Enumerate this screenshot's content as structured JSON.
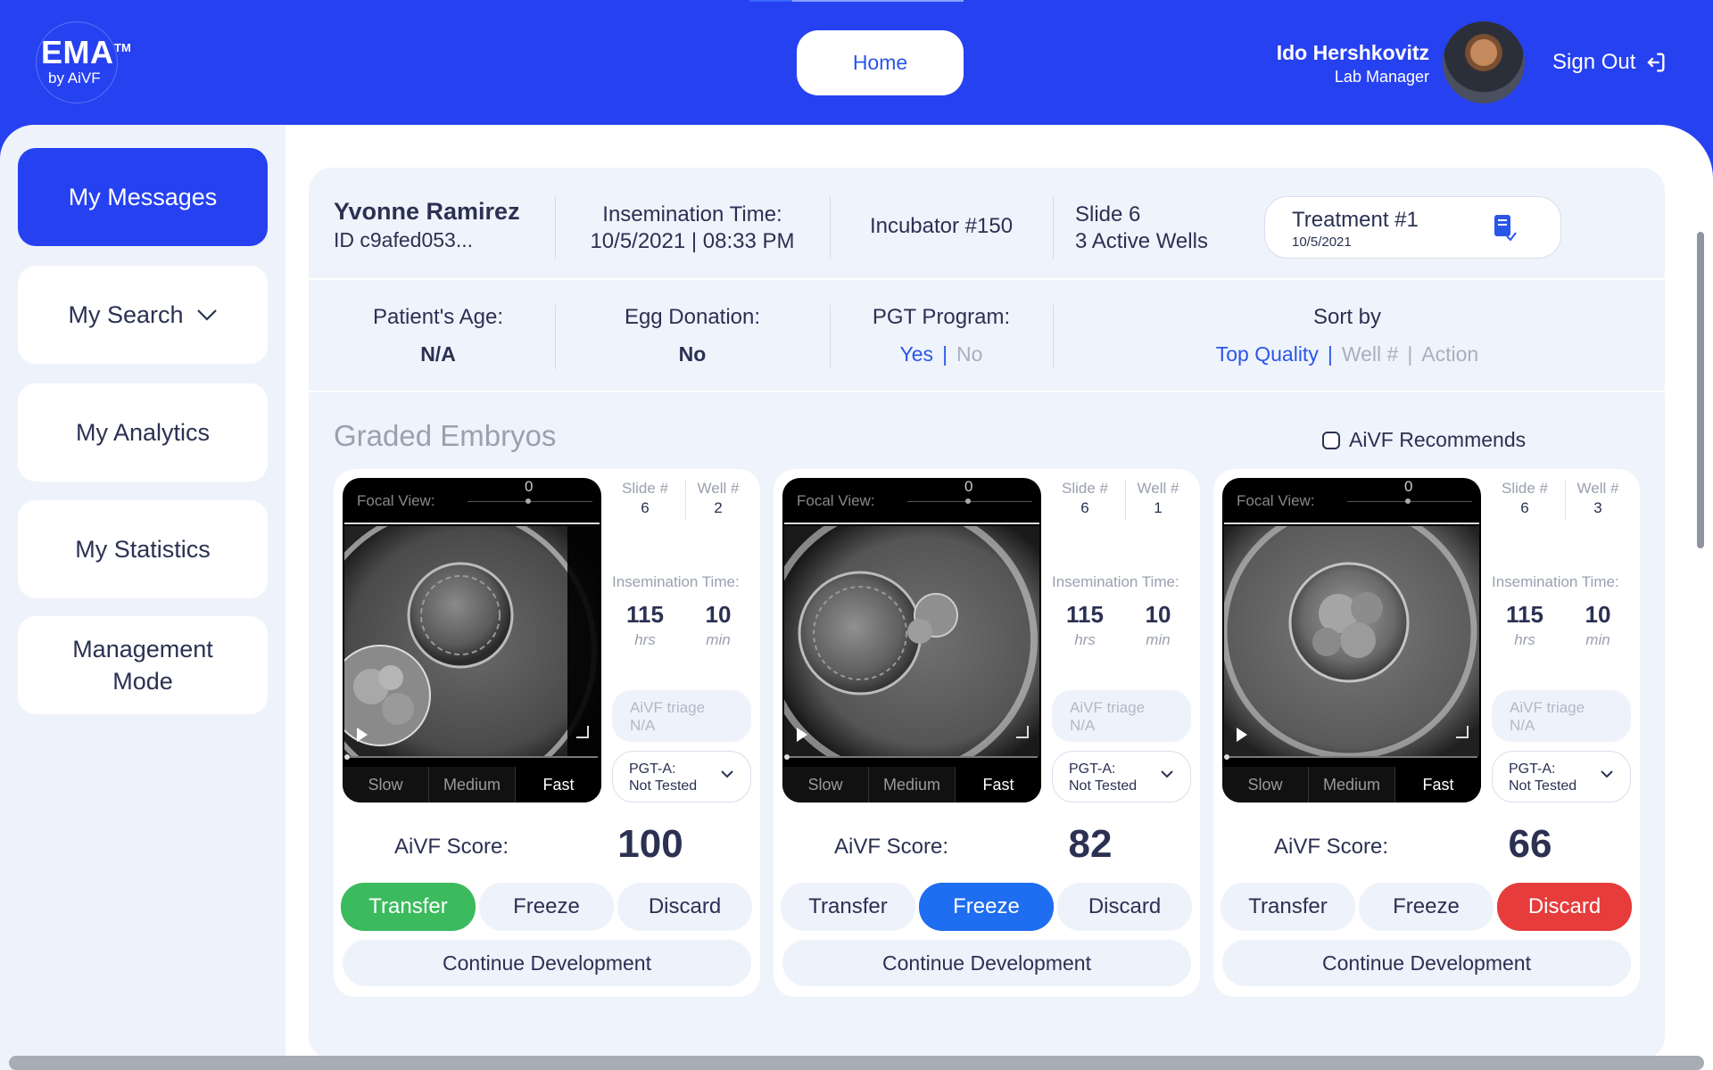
{
  "header": {
    "logo_text": "EMA",
    "logo_tm": "TM",
    "logo_sub": "by AiVF",
    "home_label": "Home",
    "user_name": "Ido Hershkovitz",
    "user_role": "Lab Manager",
    "signout_label": "Sign Out"
  },
  "sidebar": {
    "items": [
      {
        "label": "My Messages"
      },
      {
        "label": "My Search"
      },
      {
        "label": "My Analytics"
      },
      {
        "label": "My Statistics"
      },
      {
        "label": "Management Mode"
      }
    ]
  },
  "patient": {
    "name": "Yvonne Ramirez",
    "id": "ID c9afed053...",
    "insemination_label": "Insemination Time:",
    "insemination_value": "10/5/2021 | 08:33 PM",
    "incubator": "Incubator #150",
    "slide": "Slide 6",
    "active_wells": "3 Active Wells",
    "treatment_title": "Treatment #1",
    "treatment_date": "10/5/2021"
  },
  "details": {
    "age_label": "Patient's Age:",
    "age_value": "N/A",
    "egg_label": "Egg Donation:",
    "egg_value": "No",
    "pgt_label": "PGT Program:",
    "pgt_yes": "Yes",
    "pgt_sep": "|",
    "pgt_no": "No",
    "sort_label": "Sort by",
    "sort_top": "Top Quality",
    "sort_well": "Well #",
    "sort_action": "Action"
  },
  "section": {
    "title": "Graded Embryos",
    "recommend_label": "AiVF Recommends"
  },
  "card_common": {
    "focal_label": "Focal View:",
    "focal_value": "0",
    "slide_label": "Slide #",
    "well_label": "Well #",
    "insem_label": "Insemination Time:",
    "hrs_unit": "hrs",
    "min_unit": "min",
    "triage_label": "AiVF triage",
    "triage_value": "N/A",
    "pgt_label": "PGT-A:",
    "pgt_value": "Not Tested",
    "speed_slow": "Slow",
    "speed_medium": "Medium",
    "speed_fast": "Fast",
    "score_label": "AiVF Score:",
    "transfer": "Transfer",
    "freeze": "Freeze",
    "discard": "Discard",
    "continue": "Continue Development"
  },
  "cards": [
    {
      "slide": "6",
      "well": "2",
      "hrs": "115",
      "min": "10",
      "score": "100",
      "selected_action": "Transfer"
    },
    {
      "slide": "6",
      "well": "1",
      "hrs": "115",
      "min": "10",
      "score": "82",
      "selected_action": "Freeze"
    },
    {
      "slide": "6",
      "well": "3",
      "hrs": "115",
      "min": "10",
      "score": "66",
      "selected_action": "Discard"
    }
  ],
  "colors": {
    "brand_blue": "#2641f0",
    "transfer_green": "#3cbb5e",
    "freeze_blue": "#1f6df0",
    "discard_red": "#e63c3c"
  }
}
